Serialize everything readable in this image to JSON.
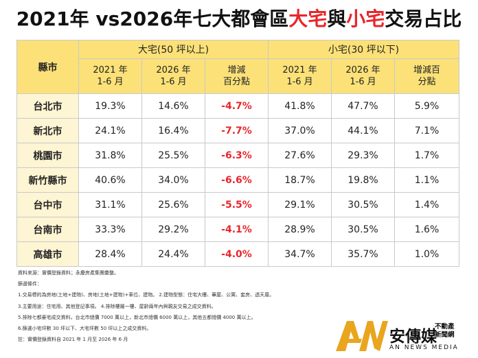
{
  "title": {
    "part1": "2021年 vs2026年七大都會區",
    "part2": "大宅",
    "part3": "與",
    "part4": "小宅",
    "part5": "交易占比"
  },
  "table": {
    "county_header": "縣市",
    "group_large": "大宅(50 坪以上)",
    "group_small": "小宅(30 坪以下)",
    "sub_headers": [
      "2021 年\n1-6 月",
      "2026 年\n1-6 月",
      "增減\n百分點",
      "2021 年\n1-6 月",
      "2026 年\n1-6 月",
      "增減百\n分點"
    ],
    "rows": [
      {
        "county": "台北市",
        "large_2021": "19.3%",
        "large_2026": "14.6%",
        "large_change": "-4.7%",
        "small_2021": "41.8%",
        "small_2026": "47.7%",
        "small_change": "5.9%"
      },
      {
        "county": "新北市",
        "large_2021": "24.1%",
        "large_2026": "16.4%",
        "large_change": "-7.7%",
        "small_2021": "37.0%",
        "small_2026": "44.1%",
        "small_change": "7.1%"
      },
      {
        "county": "桃園市",
        "large_2021": "31.8%",
        "large_2026": "25.5%",
        "large_change": "-6.3%",
        "small_2021": "27.6%",
        "small_2026": "29.3%",
        "small_change": "1.7%"
      },
      {
        "county": "新竹縣市",
        "large_2021": "40.6%",
        "large_2026": "34.0%",
        "large_change": "-6.6%",
        "small_2021": "18.7%",
        "small_2026": "19.8%",
        "small_change": "1.1%"
      },
      {
        "county": "台中市",
        "large_2021": "31.1%",
        "large_2026": "25.6%",
        "large_change": "-5.5%",
        "small_2021": "29.1%",
        "small_2026": "30.5%",
        "small_change": "1.4%"
      },
      {
        "county": "台南市",
        "large_2021": "33.3%",
        "large_2026": "29.2%",
        "large_change": "-4.1%",
        "small_2021": "28.9%",
        "small_2026": "30.5%",
        "small_change": "1.6%"
      },
      {
        "county": "高雄市",
        "large_2021": "28.4%",
        "large_2026": "24.4%",
        "large_change": "-4.0%",
        "small_2021": "34.7%",
        "small_2026": "35.7%",
        "small_change": "1.0%"
      }
    ]
  },
  "notes": [
    "資料來源：實價登錄資料；永慶房產集團彙整。",
    "篩選條件：",
    "1.交易標的為房地(土地+建物)、房地(土地+建物)+車位、建物。    2.建物型態：住宅大樓、華廈、公寓、套房、透天厝。",
    "3.主要用途：住宅用、其他登記事項。    4.排除樓層一樓、屋齡兩年內與親友交易之成交資料。",
    "5.排除七都豪宅成交資料，台北市總價 7000 萬以上，新北市總價 6000 萬以上，其他五都總價 4000 萬以上。",
    "6.篩選小宅坪數 30 坪以下、大宅坪數 50 坪以上之成交資料。",
    "註：實價登錄資料自 2021 年 1 月至 2026 年 6 月"
  ],
  "logo": {
    "name": "安傳媒",
    "tagline": "不動產\n新聞網",
    "english": "AN NEWS MEDIA"
  },
  "colors": {
    "header_bg": "#fbe178",
    "county_bg": "#fdf5d3",
    "highlight_red": "#e8262b",
    "logo_gold": "#e9a51e"
  }
}
